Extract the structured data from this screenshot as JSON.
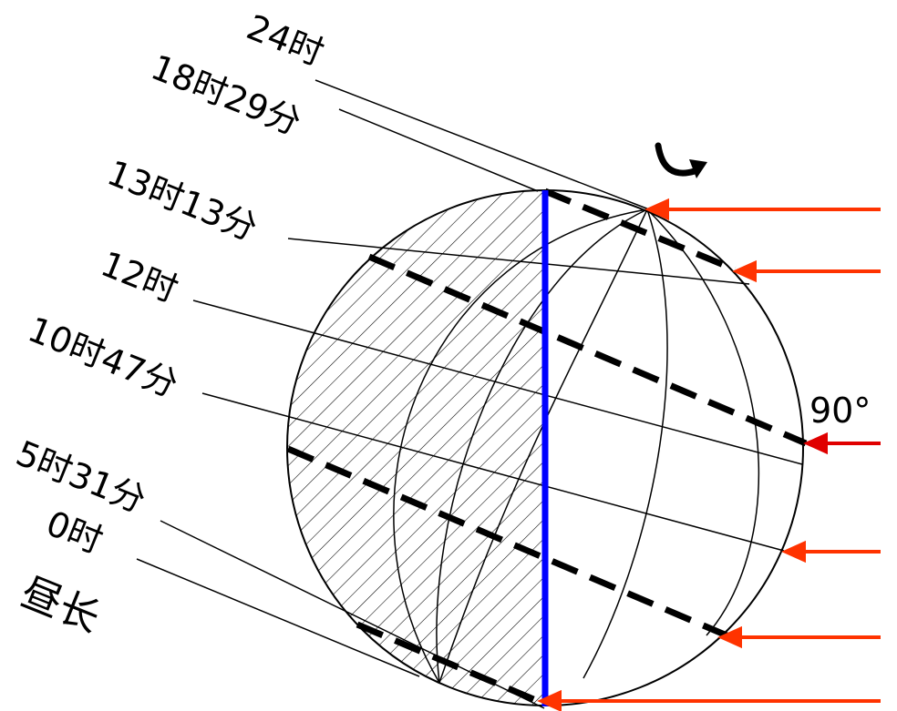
{
  "labels": {
    "t24": "24时",
    "t18_29": "18时29分",
    "t13_13": "13时13分",
    "t12": "12时",
    "t10_47": "10时47分",
    "t5_31": "5时31分",
    "t0": "0时",
    "day_length": "昼长",
    "angle": "90°"
  },
  "colors": {
    "terminator": "#0000ff",
    "sun_ray": "#ff3300",
    "sun_ray_main": "#e00000",
    "line": "#000000"
  },
  "icons": {
    "rotation": "curved-rotation-arrow-icon"
  }
}
